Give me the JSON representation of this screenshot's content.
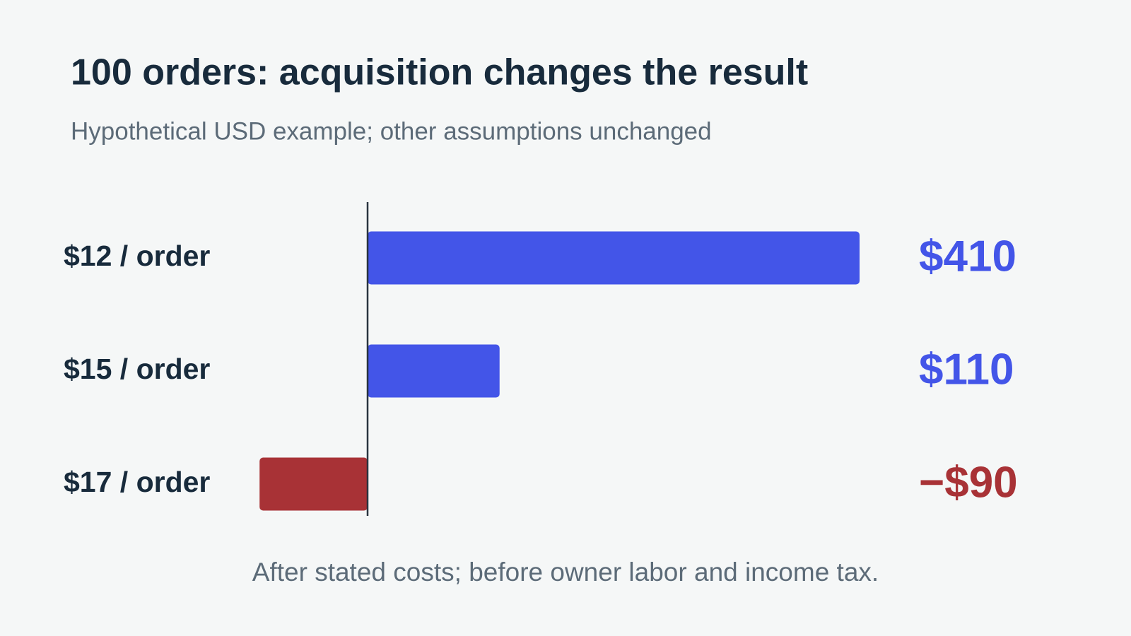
{
  "chart_data": {
    "type": "bar",
    "orientation": "horizontal",
    "title": "100 orders: acquisition changes the result",
    "subtitle": "Hypothetical USD example; other assumptions unchanged",
    "categories": [
      "$12 / order",
      "$15 / order",
      "$17 / order"
    ],
    "values": [
      410,
      110,
      -90
    ],
    "value_labels": [
      "$410",
      "$110",
      "−$90"
    ],
    "colors": [
      "#4355e8",
      "#4355e8",
      "#a83236"
    ],
    "note": "After stated costs; before owner labor and income tax."
  }
}
